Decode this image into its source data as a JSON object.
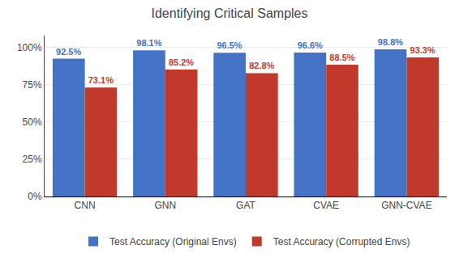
{
  "chart_data": {
    "type": "bar",
    "title": "Identifying Critical Samples",
    "categories": [
      "CNN",
      "GNN",
      "GAT",
      "CVAE",
      "GNN-CVAE"
    ],
    "series": [
      {
        "name": "Test Accuracy (Original Envs)",
        "color": "#4472c4",
        "values": [
          92.5,
          98.1,
          96.5,
          96.6,
          98.8
        ],
        "value_labels": [
          "92.5%",
          "98.1%",
          "96.5%",
          "96.6%",
          "98.8%"
        ]
      },
      {
        "name": "Test Accuracy (Corrupted Envs)",
        "color": "#c0392b",
        "values": [
          73.1,
          85.2,
          82.8,
          88.5,
          93.3
        ],
        "value_labels": [
          "73.1%",
          "85.2%",
          "82.8%",
          "88.5%",
          "93.3%"
        ]
      }
    ],
    "ylim": [
      0,
      108
    ],
    "yticks": [
      {
        "value": 0,
        "label": "0%"
      },
      {
        "value": 25,
        "label": "25%"
      },
      {
        "value": 50,
        "label": "50%"
      },
      {
        "value": 75,
        "label": "75%"
      },
      {
        "value": 100,
        "label": "100%"
      }
    ],
    "grid": true,
    "legend": "bottom",
    "data_labels": true
  }
}
